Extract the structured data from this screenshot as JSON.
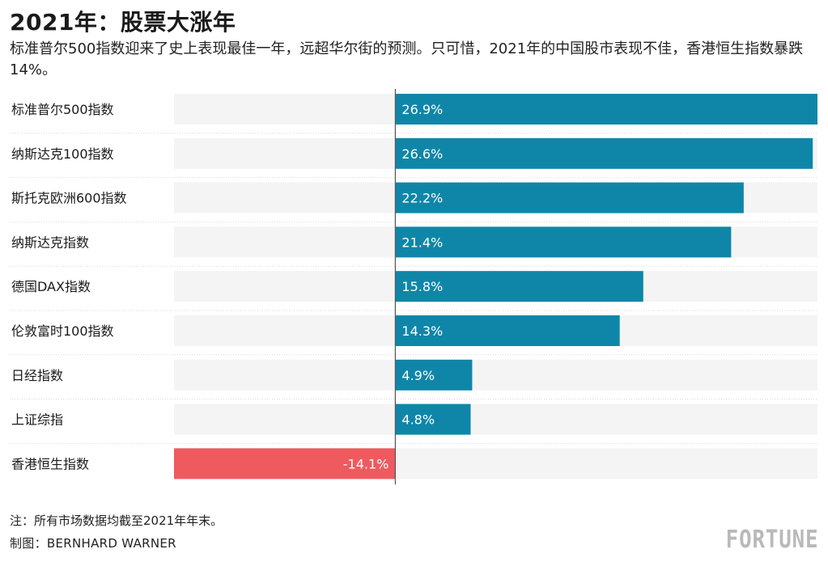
{
  "title": "2021年：股票大涨年",
  "subtitle": "标准普尔500指数迎来了史上表现最佳一年，远超华尔街的预测。只可惜，2021年的中国股市表现不佳，香港恒生指数暴跌14%。",
  "footnote": "注：所有市场数据均截至2021年年末。",
  "credit": "制图：BERNHARD WARNER",
  "brand": "FORTUNE",
  "colors": {
    "positive": "#0f86a8",
    "negative": "#ef5a5f",
    "track": "#f4f4f4",
    "axis": "#555555",
    "separator": "#d9d9d9"
  },
  "chart_data": {
    "type": "bar",
    "orientation": "horizontal",
    "title": "2021年：股票大涨年",
    "categories": [
      "标准普尔500指数",
      "纳斯达克100指数",
      "斯托克欧洲600指数",
      "纳斯达克指数",
      "德国DAX指数",
      "伦敦富时100指数",
      "日经指数",
      "上证综指",
      "香港恒生指数"
    ],
    "values": [
      26.9,
      26.6,
      22.2,
      21.4,
      15.8,
      14.3,
      4.9,
      4.8,
      -14.1
    ],
    "labels": [
      "26.9%",
      "26.6%",
      "22.2%",
      "21.4%",
      "15.8%",
      "14.3%",
      "4.9%",
      "4.8%",
      "-14.1%"
    ],
    "unit": "%",
    "xlim": [
      -14.1,
      26.9
    ],
    "xlabel": "",
    "ylabel": ""
  }
}
